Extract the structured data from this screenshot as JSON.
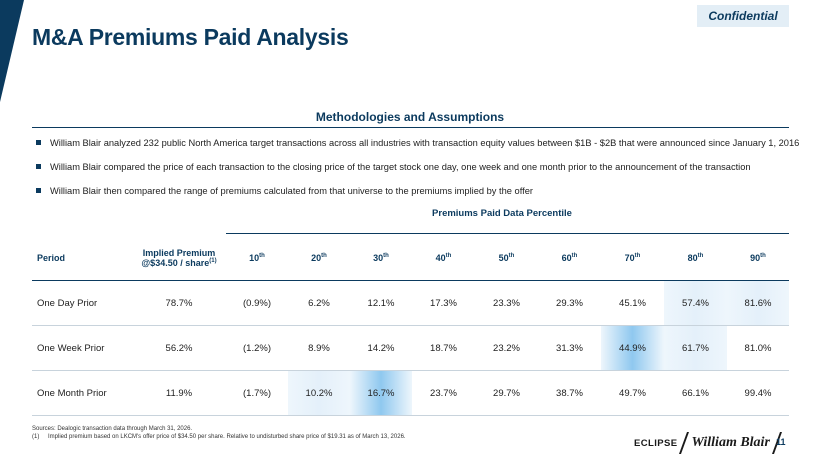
{
  "header": {
    "title": "M&A Premiums Paid Analysis",
    "badge": "Confidential",
    "accent_color": "#0b3a5e"
  },
  "methodology": {
    "title": "Methodologies and Assumptions",
    "bullets": [
      "William Blair analyzed 232 public North America target transactions across all industries with transaction equity values between $1B - $2B that were announced since January 1, 2016",
      "William Blair compared the price of each transaction to the closing price of the target stock one day, one week and one month prior to the announcement of the transaction",
      "William Blair then compared the range of premiums calculated from that universe to the premiums implied by the offer"
    ]
  },
  "table": {
    "group_title": "Premiums Paid Data Percentile",
    "headers": {
      "period": "Period",
      "implied_line1": "Implied Premium",
      "implied_line2": "@$34.50 / share",
      "implied_sup": "(1)",
      "percentiles": [
        {
          "num": "10",
          "sup": "th"
        },
        {
          "num": "20",
          "sup": "th"
        },
        {
          "num": "30",
          "sup": "th"
        },
        {
          "num": "40",
          "sup": "th"
        },
        {
          "num": "50",
          "sup": "th"
        },
        {
          "num": "60",
          "sup": "th"
        },
        {
          "num": "70",
          "sup": "th"
        },
        {
          "num": "80",
          "sup": "th"
        },
        {
          "num": "90",
          "sup": "th"
        }
      ]
    },
    "rows": [
      {
        "period": "One Day Prior",
        "implied": "78.7%",
        "values": [
          "(0.9%)",
          "6.2%",
          "12.1%",
          "17.3%",
          "23.3%",
          "29.3%",
          "45.1%",
          "57.4%",
          "81.6%"
        ]
      },
      {
        "period": "One Week Prior",
        "implied": "56.2%",
        "values": [
          "(1.2%)",
          "8.9%",
          "14.2%",
          "18.7%",
          "23.2%",
          "31.3%",
          "44.9%",
          "61.7%",
          "81.0%"
        ]
      },
      {
        "period": "One Month Prior",
        "implied": "11.9%",
        "values": [
          "(1.7%)",
          "10.2%",
          "16.7%",
          "23.7%",
          "29.7%",
          "38.7%",
          "49.7%",
          "66.1%",
          "99.4%"
        ]
      }
    ]
  },
  "footnotes": {
    "sources": "Sources: Dealogic transaction data through March 31, 2026.",
    "note_num": "(1)",
    "note_text": "Implied premium based on LKCM's offer price of $34.50 per share. Relative to undisturbed share price of $19.31 as of March 13, 2026."
  },
  "footer": {
    "logo_eclipse": "ECLIPSE",
    "logo_wb": "William Blair",
    "page_number": "11"
  }
}
